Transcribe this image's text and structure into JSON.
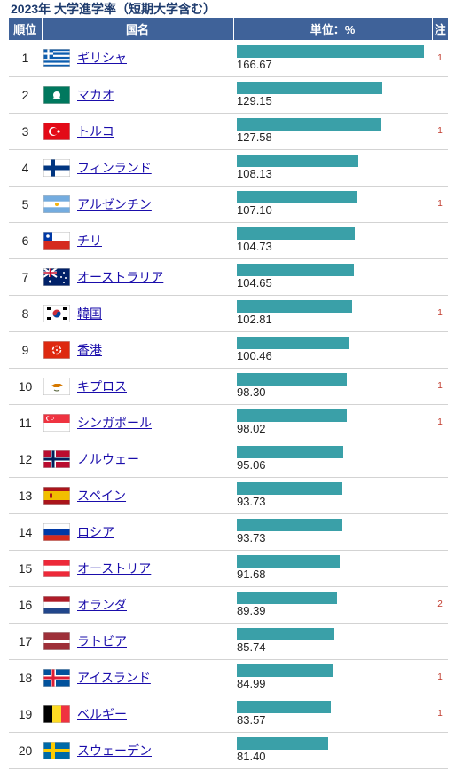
{
  "title": "2023年 大学進学率（短期大学含む）",
  "header": {
    "rank": "順位",
    "country": "国名",
    "value": "単位：%",
    "note": "注"
  },
  "chart_data": {
    "type": "bar",
    "title": "2023年 大学進学率（短期大学含む）",
    "unit": "%",
    "xlim": [
      0,
      166.67
    ],
    "rows": [
      {
        "rank": "1",
        "country": "ギリシャ",
        "value": 166.67,
        "value_label": "166.67",
        "note": "1",
        "flag": "greece-flag-icon"
      },
      {
        "rank": "2",
        "country": "マカオ",
        "value": 129.15,
        "value_label": "129.15",
        "note": "",
        "flag": "macao-flag-icon"
      },
      {
        "rank": "3",
        "country": "トルコ",
        "value": 127.58,
        "value_label": "127.58",
        "note": "1",
        "flag": "turkey-flag-icon"
      },
      {
        "rank": "4",
        "country": "フィンランド",
        "value": 108.13,
        "value_label": "108.13",
        "note": "",
        "flag": "finland-flag-icon"
      },
      {
        "rank": "5",
        "country": "アルゼンチン",
        "value": 107.1,
        "value_label": "107.10",
        "note": "1",
        "flag": "argentina-flag-icon"
      },
      {
        "rank": "6",
        "country": "チリ",
        "value": 104.73,
        "value_label": "104.73",
        "note": "",
        "flag": "chile-flag-icon"
      },
      {
        "rank": "7",
        "country": "オーストラリア",
        "value": 104.65,
        "value_label": "104.65",
        "note": "",
        "flag": "australia-flag-icon"
      },
      {
        "rank": "8",
        "country": "韓国",
        "value": 102.81,
        "value_label": "102.81",
        "note": "1",
        "flag": "south-korea-flag-icon"
      },
      {
        "rank": "9",
        "country": "香港",
        "value": 100.46,
        "value_label": "100.46",
        "note": "",
        "flag": "hong-kong-flag-icon"
      },
      {
        "rank": "10",
        "country": "キプロス",
        "value": 98.3,
        "value_label": "98.30",
        "note": "1",
        "flag": "cyprus-flag-icon"
      },
      {
        "rank": "11",
        "country": "シンガポール",
        "value": 98.02,
        "value_label": "98.02",
        "note": "1",
        "flag": "singapore-flag-icon"
      },
      {
        "rank": "12",
        "country": "ノルウェー",
        "value": 95.06,
        "value_label": "95.06",
        "note": "",
        "flag": "norway-flag-icon"
      },
      {
        "rank": "13",
        "country": "スペイン",
        "value": 93.73,
        "value_label": "93.73",
        "note": "",
        "flag": "spain-flag-icon"
      },
      {
        "rank": "14",
        "country": "ロシア",
        "value": 93.73,
        "value_label": "93.73",
        "note": "",
        "flag": "russia-flag-icon"
      },
      {
        "rank": "15",
        "country": "オーストリア",
        "value": 91.68,
        "value_label": "91.68",
        "note": "",
        "flag": "austria-flag-icon"
      },
      {
        "rank": "16",
        "country": "オランダ",
        "value": 89.39,
        "value_label": "89.39",
        "note": "2",
        "flag": "netherlands-flag-icon"
      },
      {
        "rank": "17",
        "country": "ラトビア",
        "value": 85.74,
        "value_label": "85.74",
        "note": "",
        "flag": "latvia-flag-icon"
      },
      {
        "rank": "18",
        "country": "アイスランド",
        "value": 84.99,
        "value_label": "84.99",
        "note": "1",
        "flag": "iceland-flag-icon"
      },
      {
        "rank": "19",
        "country": "ベルギー",
        "value": 83.57,
        "value_label": "83.57",
        "note": "1",
        "flag": "belgium-flag-icon"
      },
      {
        "rank": "20",
        "country": "スウェーデン",
        "value": 81.4,
        "value_label": "81.40",
        "note": "",
        "flag": "sweden-flag-icon"
      }
    ]
  },
  "colors": {
    "header": "#3f6299",
    "bar": "#3aa0a8",
    "link": "#1a0dab",
    "note": "#c0392b",
    "title": "#1f3c6e"
  }
}
